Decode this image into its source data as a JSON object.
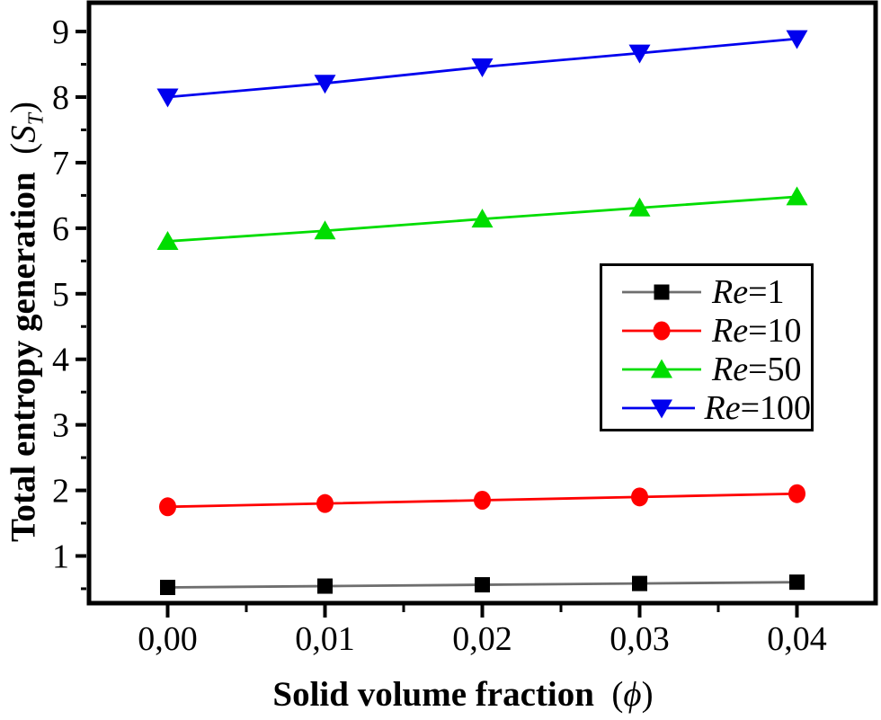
{
  "chart_data": {
    "type": "line",
    "title": "",
    "x": [
      0.0,
      0.01,
      0.02,
      0.03,
      0.04
    ],
    "x_tick_labels": [
      "0,00",
      "0,01",
      "0,02",
      "0,03",
      "0,04"
    ],
    "x_minor_ticks": [
      0.005,
      0.015,
      0.025,
      0.035
    ],
    "y_ticks": [
      1,
      2,
      3,
      4,
      5,
      6,
      7,
      8,
      9
    ],
    "y_tick_labels": [
      "1",
      "2",
      "3",
      "4",
      "5",
      "6",
      "7",
      "8",
      "9"
    ],
    "y_minor_step": 0.5,
    "xlim": [
      -0.005,
      0.045
    ],
    "ylim": [
      0.28,
      9.44
    ],
    "xlabel": "Solid volume fraction (ϕ)",
    "ylabel": "Total entropy generation (ST)",
    "grid": false,
    "legend_position": "center-right",
    "series": [
      {
        "name": "Re=1",
        "marker": "square",
        "marker_color": "#000000",
        "line_color": "#6e6e6e",
        "values": [
          0.52,
          0.54,
          0.56,
          0.58,
          0.6
        ]
      },
      {
        "name": "Re=10",
        "marker": "circle",
        "marker_color": "#ff0000",
        "line_color": "#ff0000",
        "values": [
          1.75,
          1.8,
          1.85,
          1.9,
          1.95
        ]
      },
      {
        "name": "Re=50",
        "marker": "triangle-up",
        "marker_color": "#00dd00",
        "line_color": "#00dd00",
        "values": [
          5.8,
          5.96,
          6.14,
          6.31,
          6.48
        ]
      },
      {
        "name": "Re=100",
        "marker": "triangle-down",
        "marker_color": "#0000ee",
        "line_color": "#0000ee",
        "values": [
          8.0,
          8.21,
          8.46,
          8.67,
          8.89
        ]
      }
    ]
  },
  "labels": {
    "x_title": "Solid volume fraction",
    "x_symbol_open": "(",
    "x_symbol": "ϕ",
    "x_symbol_close": ")",
    "y_title": "Total entropy generation",
    "y_symbol_open": "(",
    "y_symbol": "S",
    "y_symbol_sub": "T",
    "y_symbol_close": ")"
  },
  "legend": {
    "items": [
      {
        "prefix": "Re",
        "rest": "=1"
      },
      {
        "prefix": "Re",
        "rest": "=10"
      },
      {
        "prefix": "Re",
        "rest": "=50"
      },
      {
        "prefix": "Re",
        "rest": "=100"
      }
    ]
  },
  "colors": {
    "frame": "#000000",
    "background": "#ffffff"
  }
}
